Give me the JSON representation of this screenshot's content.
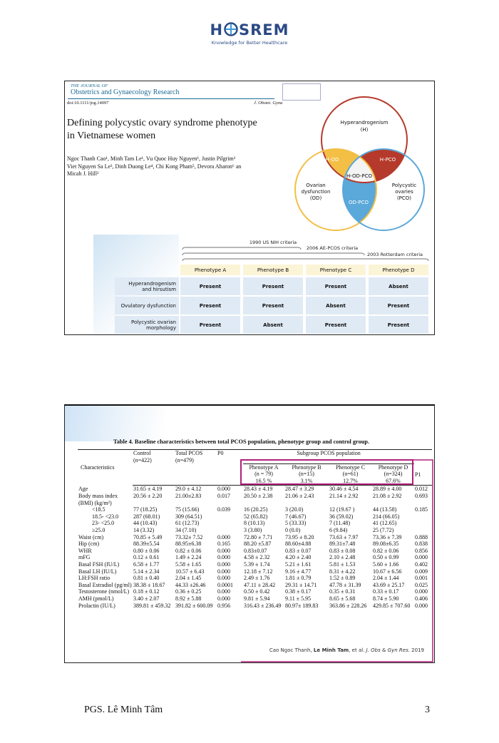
{
  "header": {
    "logo_left": "H",
    "logo_right": "SREM",
    "tagline": "Knowledge for Better Healthcare"
  },
  "slide1": {
    "journal_of": "THE JOURNAL OF",
    "journal_name": "Obstetrics and Gynaecology Research",
    "doi": "doi:10.1111/jog.14097",
    "citation": "J. Obstet. Gyna",
    "title_lines": [
      "Defining polycystic ovary syndrome phenotype",
      "in Vietnamese women"
    ],
    "author_lines": [
      "Ngoc Thanh Cao¹, Minh Tam Le¹, Vu Quoc Huy Nguyen¹, Justin Pilgrim²",
      "Viet Nguyen Sa Le³, Dinh Duong Le⁴, Chi Kong Pham⁵, Devora Aharon⁶ an",
      "Micah J. Hill²"
    ],
    "venn": {
      "hyperandrogenism": [
        "Hyperandrogenism",
        "(H)"
      ],
      "ovarian_dysfunction": [
        "Ovarian",
        "dysfunction",
        "(OD)"
      ],
      "polycystic_ovaries": [
        "Polycystic",
        "ovaries",
        "(PCO)"
      ],
      "h_od": "H-OD",
      "h_pco": "H-PCO",
      "h_od_pco": "H-OD-PCO",
      "od_pco": "OD-PCO"
    },
    "criteria": [
      "1990 US NIH criteria",
      "2006 AE-PCOS criteria",
      "2003 Rotterdam criteria"
    ],
    "phenotype_table": {
      "columns": [
        "Phenotype A",
        "Phenotype B",
        "Phenotype C",
        "Phenotype D"
      ],
      "rows": [
        [
          [
            "Hyperandrogenism",
            "and hirsutism"
          ],
          "Present",
          "Present",
          "Present",
          "Absent"
        ],
        [
          [
            "Ovulatory dysfunction"
          ],
          "Present",
          "Present",
          "Absent",
          "Present"
        ],
        [
          [
            "Polycystic ovarian",
            "morphology"
          ],
          "Present",
          "Absent",
          "Present",
          "Present"
        ]
      ]
    }
  },
  "slide2": {
    "table_title": "Table 4. Baseline characteristics between total PCOS population, phenotype group and control group.",
    "header": {
      "characteristics": "Characteristics",
      "control": [
        "Control",
        "(n=422)"
      ],
      "total": [
        "Total PCOS",
        "(n=479)"
      ],
      "p0": "P0",
      "subgroup": "Subgroup PCOS population",
      "phenotypes": [
        [
          "Phenotype A",
          "(n = 79)",
          "16.5 %"
        ],
        [
          "Phenotype B",
          "(n=15)",
          "3.1%"
        ],
        [
          "Phenotype C",
          "(n=61)",
          "12.7%"
        ],
        [
          "Phenotype D",
          "(n=324)",
          "67.6%"
        ]
      ],
      "p1": "P1"
    },
    "rows": [
      [
        "Age",
        "31.65 ± 4.19",
        "29.0 ± 4.12",
        "0.000",
        "28.43 ± 4.19",
        "28.47 ± 3.29",
        "30.46 ± 4.54",
        "28.89 ± 4.00",
        "0.012"
      ],
      [
        "Body mass index (BMI) (kg/m²)",
        "20.56 ± 2.20",
        "21.00±2.83",
        "0.017",
        "20.50 ± 2.38",
        "21.06 ± 2.43",
        "21.14 ± 2.92",
        "21.08 ± 2.92",
        "0.693"
      ],
      [
        "<18.5",
        "77 (18.25)",
        "75 (15.66)",
        "0.039",
        "16 (20.25)",
        "3 (20.0)",
        "12 (19.67 )",
        "44 (13.58)",
        "0.185"
      ],
      [
        "18.5- <23.0",
        "287 (68.01)",
        "309 (64.51)",
        null,
        "52 (65.82)",
        "7 (46.67)",
        "36 (59.02)",
        "214 (66.05)",
        null
      ],
      [
        "23- <25.0",
        "44 (10.43)",
        "61 (12.73)",
        null,
        "8 (10.13)",
        "5 (33.33)",
        "7 (11.48)",
        "41 (12.65)",
        null
      ],
      [
        "≥25.0",
        "14 (3.32)",
        "34 (7.10)",
        null,
        "3 (3.80)",
        "0 (0.0)",
        "6 (9.84)",
        "25 (7.72)",
        null
      ],
      [
        "Waist (cm)",
        "70.85 ± 5.49",
        "73.32± 7.52",
        "0.000",
        "72.80 ± 7.71",
        "73.95 ± 8.20",
        "73.63 ± 7.97",
        "73.36 ± 7.39",
        "0.888"
      ],
      [
        "Hip (cm)",
        "88.39±5.54",
        "88.95±6.38",
        "0.165",
        "88.20 ±5.87",
        "88.60±4.88",
        "89.31±7.48",
        "89.08±6.35",
        "0.838"
      ],
      [
        "WHR",
        "0.80 ± 0.06",
        "0.82 ± 0.06",
        "0.000",
        "0.83±0.07",
        "0.83 ± 0.07",
        "0.83 ± 0.08",
        "0.82 ± 0.06",
        "0.856"
      ],
      [
        "mFG",
        "0.12 ± 0.61",
        "1.49 ± 2.24",
        "0.000",
        "4.58 ± 2.32",
        "4.20 ± 2.40",
        "2.10 ± 2.48",
        "0.50 ± 0.99",
        "0.000"
      ],
      [
        "Basal FSH (IU/L)",
        "6.58 ± 1.77",
        "5.58 ± 1.65",
        "0.000",
        "5.39 ± 1.74",
        "5.21 ± 1.61",
        "5.81 ± 1.53",
        "5.60 ± 1.66",
        "0.402"
      ],
      [
        "Basal LH (IU/L)",
        "5.14 ± 2.34",
        "10.57 ± 6.43",
        "0.000",
        "12.18 ± 7.12",
        "9.16 ± 4.77",
        "8.31 ± 4.22",
        "10.67 ± 6.56",
        "0.009"
      ],
      [
        "LH:FSH ratio",
        "0.81 ± 0.40",
        "2.04 ± 1.45",
        "0.000",
        "2.49 ± 1.76",
        "1.81 ± 0.79",
        "1.52 ± 0.89",
        "2.04 ± 1.44",
        "0.001"
      ],
      [
        "Basal Estradiol (pg/ml)",
        "38.38 ± 18.67",
        "44.33 ±26.46",
        "0.0001",
        "47.11 ± 28.42",
        "29.31 ± 14.71",
        "47.78 ± 31.39",
        "43.69 ± 25.17",
        "0.025"
      ],
      [
        "Testosterone (nmol/L)",
        "0.18 ± 0.12",
        "0.36 ± 0.25",
        "0.000",
        "0.50 ± 0.42",
        "0.38 ± 0.17",
        "0.35 ± 0.31",
        "0.33 ± 0.17",
        "0.000"
      ],
      [
        "AMH (pmol/L)",
        "3.40 ± 2.07",
        "8.92 ± 5.88",
        "0.000",
        "9.81 ± 5.94",
        "9.11 ± 5.95",
        "8.65 ± 5.68",
        "8.74 ± 5.90",
        "0.406"
      ],
      [
        "Prolactin (IU/L)",
        "389.81 ± 459.32",
        "391.82 ± 600.09",
        "0.956",
        "316.43 ± 236.49",
        "80.97± 189.83",
        "363.86 ± 228.26",
        "429.85 ± 707.60",
        "0.000"
      ]
    ],
    "citation_parts": [
      "Cao Ngoc Thanh, ",
      "Le Minh Tam",
      ", et al. ",
      "J. Obs & Gyn Res.",
      " 2019"
    ]
  },
  "footer": {
    "author": "PGS. Lê Minh Tâm",
    "page": "3"
  }
}
